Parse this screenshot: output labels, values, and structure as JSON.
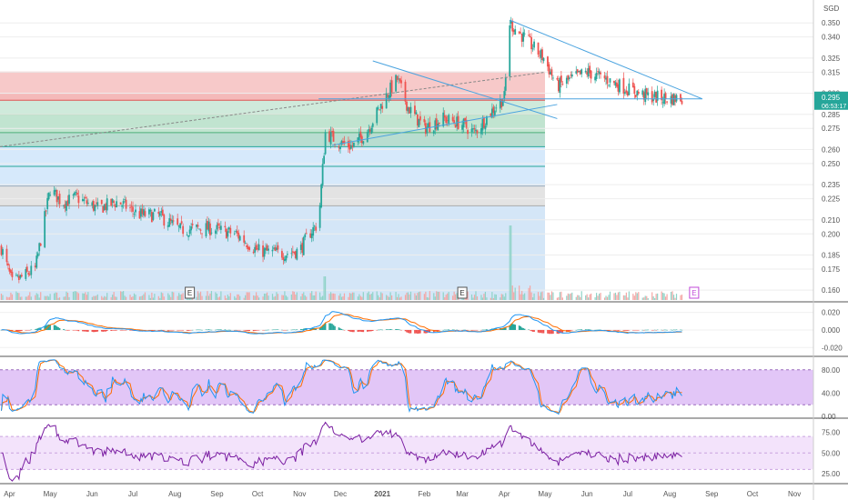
{
  "chart_data": [
    {
      "type": "candlestick",
      "panel": "price",
      "currency": "SGD",
      "y_ticks": [
        "0.350",
        "0.340",
        "0.325",
        "0.315",
        "0.300",
        "0.285",
        "0.275",
        "0.260",
        "0.250",
        "0.235",
        "0.225",
        "0.210",
        "0.200",
        "0.185",
        "0.175",
        "0.160"
      ],
      "last_price": "0.295",
      "countdown": "06:53:17",
      "earnings_markers": [
        "E",
        "E",
        "E"
      ],
      "ylim": [
        0.153,
        0.365
      ],
      "anchors": [
        {
          "d": "2020-03-26",
          "v": 0.19
        },
        {
          "d": "2020-04-03",
          "v": 0.165
        },
        {
          "d": "2020-04-20",
          "v": 0.175
        },
        {
          "d": "2020-05-01",
          "v": 0.232
        },
        {
          "d": "2020-05-10",
          "v": 0.222
        },
        {
          "d": "2020-05-20",
          "v": 0.226
        },
        {
          "d": "2020-06-05",
          "v": 0.218
        },
        {
          "d": "2020-06-20",
          "v": 0.223
        },
        {
          "d": "2020-07-05",
          "v": 0.214
        },
        {
          "d": "2020-07-20",
          "v": 0.213
        },
        {
          "d": "2020-08-05",
          "v": 0.203
        },
        {
          "d": "2020-08-25",
          "v": 0.204
        },
        {
          "d": "2020-09-15",
          "v": 0.2
        },
        {
          "d": "2020-10-01",
          "v": 0.188
        },
        {
          "d": "2020-10-20",
          "v": 0.186
        },
        {
          "d": "2020-11-01",
          "v": 0.188
        },
        {
          "d": "2020-11-08",
          "v": 0.2
        },
        {
          "d": "2020-11-15",
          "v": 0.208
        },
        {
          "d": "2020-11-20",
          "v": 0.272
        },
        {
          "d": "2020-11-30",
          "v": 0.265
        },
        {
          "d": "2020-12-10",
          "v": 0.262
        },
        {
          "d": "2020-12-20",
          "v": 0.272
        },
        {
          "d": "2021-01-05",
          "v": 0.3
        },
        {
          "d": "2021-01-12",
          "v": 0.31
        },
        {
          "d": "2021-01-20",
          "v": 0.29
        },
        {
          "d": "2021-02-01",
          "v": 0.275
        },
        {
          "d": "2021-02-15",
          "v": 0.282
        },
        {
          "d": "2021-03-01",
          "v": 0.278
        },
        {
          "d": "2021-03-10",
          "v": 0.272
        },
        {
          "d": "2021-03-25",
          "v": 0.29
        },
        {
          "d": "2021-04-01",
          "v": 0.297
        },
        {
          "d": "2021-04-05",
          "v": 0.35
        },
        {
          "d": "2021-04-15",
          "v": 0.34
        },
        {
          "d": "2021-04-30",
          "v": 0.325
        },
        {
          "d": "2021-05-10",
          "v": 0.305
        },
        {
          "d": "2021-05-20",
          "v": 0.31
        },
        {
          "d": "2021-06-01",
          "v": 0.315
        },
        {
          "d": "2021-06-15",
          "v": 0.31
        },
        {
          "d": "2021-07-01",
          "v": 0.303
        },
        {
          "d": "2021-07-15",
          "v": 0.298
        },
        {
          "d": "2021-08-01",
          "v": 0.296
        },
        {
          "d": "2021-08-10",
          "v": 0.297
        }
      ]
    },
    {
      "type": "line",
      "panel": "macd",
      "y_ticks": [
        "0.020",
        "0.000",
        "-0.020"
      ]
    },
    {
      "type": "line",
      "panel": "stochastic",
      "y_ticks": [
        "80.00",
        "40.00",
        "0.00"
      ],
      "band": [
        20,
        80
      ]
    },
    {
      "type": "line",
      "panel": "rsi",
      "y_ticks": [
        "75.00",
        "50.00",
        "25.00"
      ],
      "band": [
        30,
        70
      ]
    }
  ],
  "x_axis": {
    "labels": [
      "Apr",
      "May",
      "Jun",
      "Jul",
      "Aug",
      "Sep",
      "Oct",
      "Nov",
      "Dec",
      "2021",
      "Feb",
      "Mar",
      "Apr",
      "May",
      "Jun",
      "Jul",
      "Aug",
      "Sep",
      "Oct",
      "Nov"
    ],
    "range": [
      "2020-03-25",
      "2021-11-15"
    ]
  },
  "colors": {
    "up": "#26a69a",
    "down": "#ef5350",
    "trend_lines": "#4aa3df",
    "fib_red": "#f7c9c9",
    "fib_green": "#cfeadb",
    "fib_gray": "#e3e3e3",
    "fib_blue": "#d6e9fb",
    "stoch_band": "#e2c6f7",
    "rsi_band": "#f3e3fb",
    "macd_line": "#2196f3",
    "signal_line": "#ff6d00",
    "rsi_line": "#7b1fa2"
  }
}
